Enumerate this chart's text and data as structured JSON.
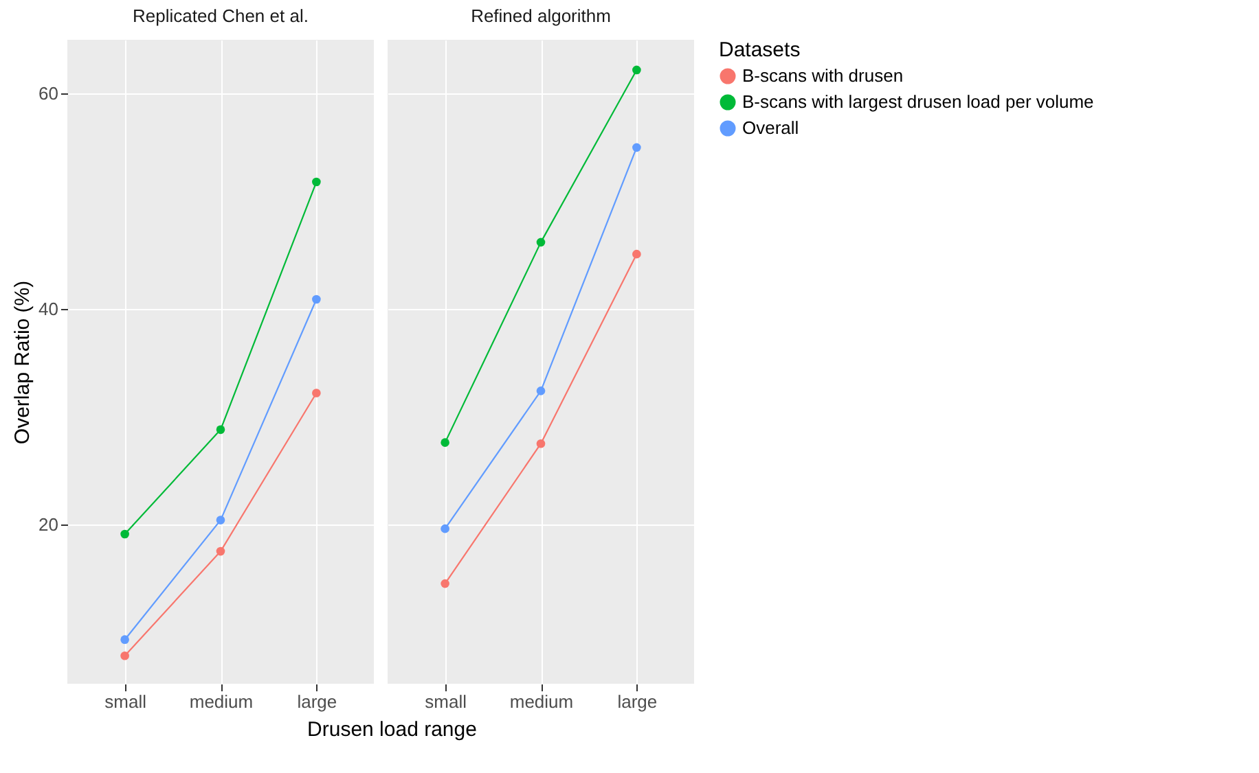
{
  "chart_data": [
    {
      "type": "line",
      "title": "Replicated Chen et al.",
      "xlabel": "Drusen load range",
      "ylabel": "Overlap Ratio (%)",
      "categories": [
        "small",
        "medium",
        "large"
      ],
      "marker": "circle",
      "grid": true,
      "ylim": [
        5.2,
        65
      ],
      "yticks": [
        20,
        40,
        60
      ],
      "series": [
        {
          "color": "#f8766d",
          "values": [
            7.8,
            17.5,
            32.2
          ]
        },
        {
          "color": "#00ba38",
          "values": [
            19.1,
            28.8,
            51.8
          ]
        },
        {
          "color": "#619cff",
          "values": [
            9.3,
            20.4,
            40.9
          ]
        }
      ]
    },
    {
      "type": "line",
      "title": "Refined algorithm",
      "legend_title": "Datasets",
      "categories": [
        "small",
        "medium",
        "large"
      ],
      "marker": "circle",
      "grid": true,
      "legend": "right",
      "tick_labels": "x",
      "ylim": [
        5.2,
        65
      ],
      "yticks": [
        20,
        40,
        60
      ],
      "series": [
        {
          "name": "B-scans with drusen",
          "color": "#f8766d",
          "values": [
            14.5,
            27.5,
            45.1
          ]
        },
        {
          "name": "B-scans with largest drusen load per volume",
          "color": "#00ba38",
          "values": [
            27.6,
            46.2,
            62.2
          ]
        },
        {
          "name": "Overall",
          "color": "#619cff",
          "values": [
            19.6,
            32.4,
            55.0
          ]
        }
      ]
    }
  ]
}
